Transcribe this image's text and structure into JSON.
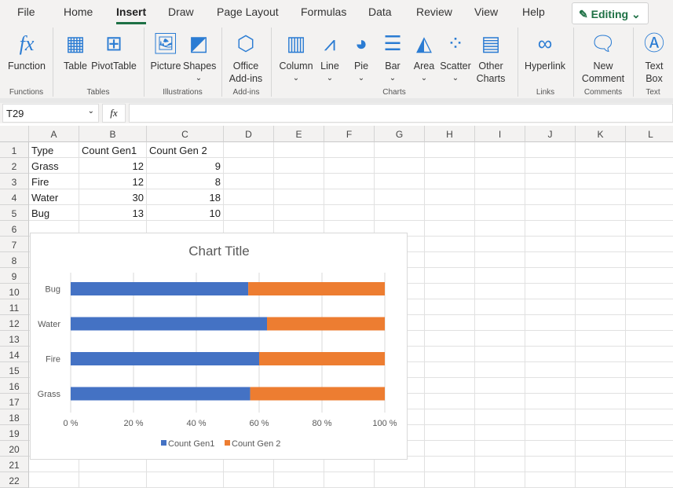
{
  "tabs": [
    "File",
    "Home",
    "Insert",
    "Draw",
    "Page Layout",
    "Formulas",
    "Data",
    "Review",
    "View",
    "Help"
  ],
  "active_tab": "Insert",
  "mode_button": "Editing",
  "ribbon": {
    "buttons": [
      {
        "id": "function",
        "label": "Function",
        "icon": "function-icon"
      },
      {
        "id": "table",
        "label": "Table",
        "icon": "table-icon"
      },
      {
        "id": "pivottable",
        "label": "PivotTable",
        "icon": "pivottable-icon"
      },
      {
        "id": "picture",
        "label": "Picture",
        "icon": "picture-icon"
      },
      {
        "id": "shapes",
        "label": "Shapes",
        "icon": "shapes-icon"
      },
      {
        "id": "office-addins",
        "label": "Office Add-ins",
        "icon": "addins-icon"
      },
      {
        "id": "column",
        "label": "Column",
        "icon": "column-chart-icon"
      },
      {
        "id": "line",
        "label": "Line",
        "icon": "line-chart-icon"
      },
      {
        "id": "pie",
        "label": "Pie",
        "icon": "pie-chart-icon"
      },
      {
        "id": "bar",
        "label": "Bar",
        "icon": "bar-chart-icon"
      },
      {
        "id": "area",
        "label": "Area",
        "icon": "area-chart-icon"
      },
      {
        "id": "scatter",
        "label": "Scatter",
        "icon": "scatter-chart-icon"
      },
      {
        "id": "other-charts",
        "label": "Other Charts",
        "icon": "other-charts-icon"
      },
      {
        "id": "hyperlink",
        "label": "Hyperlink",
        "icon": "link-icon"
      },
      {
        "id": "new-comment",
        "label": "New Comment",
        "icon": "comment-icon"
      },
      {
        "id": "text-box",
        "label": "Text Box",
        "icon": "textbox-icon"
      }
    ],
    "groups": [
      "Functions",
      "Tables",
      "Illustrations",
      "Add-ins",
      "Charts",
      "Links",
      "Comments",
      "Text"
    ]
  },
  "formula_bar": {
    "name_box": "T29",
    "fx": "fx",
    "value": ""
  },
  "columns": [
    "A",
    "B",
    "C",
    "D",
    "E",
    "F",
    "G",
    "H",
    "I",
    "J",
    "K",
    "L"
  ],
  "rows": [
    "1",
    "2",
    "3",
    "4",
    "5",
    "6",
    "7",
    "8",
    "9",
    "10",
    "11",
    "12",
    "13",
    "14",
    "15",
    "16",
    "17",
    "18",
    "19",
    "20",
    "21",
    "22"
  ],
  "cells": [
    [
      "Type",
      "Count Gen1",
      "Count Gen 2"
    ],
    [
      "Grass",
      "12",
      "9"
    ],
    [
      "Fire",
      "12",
      "8"
    ],
    [
      "Water",
      "30",
      "18"
    ],
    [
      "Bug",
      "13",
      "10"
    ]
  ],
  "chart_data": {
    "type": "bar",
    "stacked": "percent",
    "orientation": "horizontal",
    "title": "Chart Title",
    "categories": [
      "Grass",
      "Fire",
      "Water",
      "Bug"
    ],
    "series": [
      {
        "name": "Count Gen1",
        "values": [
          12,
          12,
          30,
          13
        ],
        "color": "#4472c4"
      },
      {
        "name": "Count Gen 2",
        "values": [
          9,
          8,
          18,
          10
        ],
        "color": "#ed7d31"
      }
    ],
    "xticks": [
      "0 %",
      "20 %",
      "40 %",
      "60 %",
      "80 %",
      "100 %"
    ],
    "xlim": [
      0,
      100
    ],
    "grid": true,
    "legend": "bottom"
  }
}
